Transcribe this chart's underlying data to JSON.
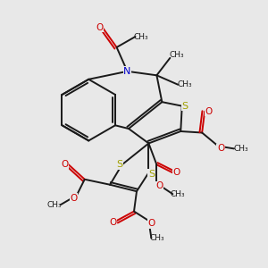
{
  "background_color": "#e8e8e8",
  "bond_color": "#1a1a1a",
  "bond_width": 1.4,
  "S_color": "#a0a000",
  "N_color": "#0000cc",
  "O_color": "#cc0000",
  "figsize": [
    3.0,
    3.0
  ],
  "dpi": 100,
  "xlim": [
    0,
    10
  ],
  "ylim": [
    0,
    10
  ]
}
